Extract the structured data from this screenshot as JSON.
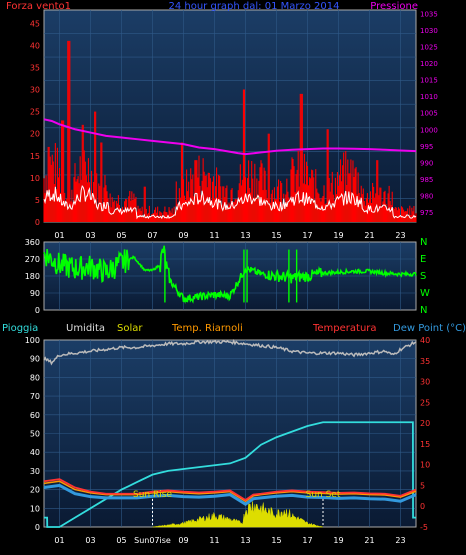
{
  "page": {
    "title": "24 hour graph dal: 01 Marzo 2014"
  },
  "colors": {
    "background": "#000000",
    "plot_top": "#1b3d66",
    "plot_bottom": "#0a1a33",
    "wind_gust": "#ff0000",
    "wind_avg": "#ffffff",
    "wind_fill": "#1d6b1d",
    "pressure": "#ee00ee",
    "direction": "#00ff00",
    "humidity": "#bbbbbb",
    "rain": "#33dddd",
    "temperature": "#ff3333",
    "temp_riarnoli": "#ff9900",
    "dew_point": "#3399dd",
    "solar": "#dddd00",
    "axis_left_red": "#ff3333",
    "axis_right_magenta": "#ee00ee",
    "axis_left_lower": "#ffffff",
    "axis_right_lower": "#ff3333"
  },
  "chart_data": [
    {
      "type": "line",
      "id": "wind-pressure",
      "title": "24 hour graph dal: 01 Marzo 2014",
      "left_label": "Forza vento1",
      "right_label": "Pressione",
      "left_ticks": [
        "0",
        "5",
        "10",
        "15",
        "20",
        "25",
        "30",
        "35",
        "40",
        "45"
      ],
      "right_ticks": [
        "975",
        "980",
        "985",
        "990",
        "995",
        "1000",
        "1005",
        "1010",
        "1015",
        "1020",
        "1025",
        "1030",
        "1035"
      ],
      "x_ticks": [
        "01",
        "03",
        "05",
        "07",
        "09",
        "11",
        "13",
        "15",
        "17",
        "19",
        "21",
        "23"
      ],
      "ylim_left": [
        0,
        48
      ],
      "ylim_right": [
        972,
        1036
      ],
      "pressure": {
        "hours": [
          0,
          0.5,
          1,
          2,
          3,
          4,
          5,
          6,
          7,
          8,
          9,
          10,
          11,
          12,
          12.5,
          13,
          14,
          15,
          16,
          17,
          18,
          19,
          20,
          21,
          22,
          23,
          24
        ],
        "values": [
          1003,
          1002.5,
          1001.5,
          1000,
          999,
          998,
          997.5,
          997,
          996.5,
          996,
          995.5,
          994.5,
          994,
          993.2,
          992.8,
          992.5,
          993,
          993.5,
          993.8,
          994,
          994.2,
          994.2,
          994.1,
          994,
          993.8,
          993.6,
          993.4
        ]
      },
      "gust_peaks": {
        "hours": [
          0.3,
          1.2,
          1.6,
          2.5,
          3.3,
          3.7,
          6.5,
          8.9,
          9.8,
          12.9,
          14.5,
          16.6,
          18.3,
          19.7,
          21.5
        ],
        "values": [
          17,
          23,
          41,
          22,
          25,
          18,
          8,
          18,
          14,
          30,
          20,
          29,
          21,
          11,
          14
        ]
      }
    },
    {
      "type": "line",
      "id": "wind-direction",
      "left_ticks": [
        "0",
        "90",
        "180",
        "270",
        "360"
      ],
      "right_ticks": [
        "N",
        "W",
        "S",
        "E",
        "N"
      ],
      "ylim": [
        0,
        360
      ],
      "direction": {
        "hours": [
          0,
          1,
          2,
          3,
          4,
          5,
          5.8,
          6.5,
          7,
          7.5,
          7.7,
          8,
          9,
          10,
          11,
          12,
          13,
          14,
          15,
          16,
          17,
          18,
          19,
          20,
          21,
          22,
          23,
          24
        ],
        "values": [
          300,
          240,
          220,
          230,
          200,
          250,
          280,
          210,
          210,
          240,
          320,
          170,
          60,
          70,
          80,
          75,
          220,
          190,
          180,
          170,
          180,
          195,
          200,
          205,
          205,
          195,
          190,
          190
        ]
      }
    },
    {
      "type": "line",
      "id": "temp-humidity",
      "header": {
        "rain": "Pioggia",
        "humidity": "Umidita",
        "solar": "Solar",
        "temp2": "Temp. Riarnoli",
        "temp": "Temperatura",
        "dew": "Dew Point (°C)"
      },
      "left_ticks": [
        "0",
        "10",
        "20",
        "30",
        "40",
        "50",
        "60",
        "70",
        "80",
        "90",
        "100"
      ],
      "right_ticks": [
        "-5",
        "0",
        "5",
        "10",
        "15",
        "20",
        "25",
        "30",
        "35",
        "40"
      ],
      "x_ticks": [
        "01",
        "03",
        "05",
        "Sun07ise",
        "09",
        "11",
        "13",
        "15",
        "17",
        "19",
        "21",
        "23"
      ],
      "ylim_left": [
        0,
        100
      ],
      "ylim_right": [
        -5,
        40
      ],
      "sun_rise_label": "Sun Rise",
      "sun_set_label": "Sun Set",
      "sun_rise_hour": 7.0,
      "sun_set_hour": 18.0,
      "humidity": {
        "hours": [
          0,
          0.5,
          1,
          2,
          3,
          4,
          5,
          6,
          7,
          8,
          9,
          10,
          11,
          12,
          13,
          14,
          15,
          16,
          17,
          18,
          19,
          20,
          21,
          22,
          22.5,
          23,
          24
        ],
        "values": [
          90,
          88,
          92,
          93,
          94,
          95,
          96,
          96,
          97,
          98,
          98,
          99,
          99,
          99,
          98,
          97,
          96,
          94,
          93,
          93,
          93,
          92,
          93,
          94,
          92,
          95,
          99
        ]
      },
      "rain": {
        "hours": [
          0,
          0.2,
          0.21,
          1,
          2,
          3,
          4,
          5,
          6,
          7,
          8,
          9,
          10,
          11,
          12,
          13,
          14,
          15,
          16,
          17,
          18,
          19,
          20,
          21,
          22,
          23,
          23.8,
          23.81,
          24
        ],
        "values": [
          5,
          5,
          0,
          0,
          5,
          10,
          15,
          20,
          24,
          28,
          30,
          31,
          32,
          33,
          34,
          37,
          44,
          48,
          51,
          54,
          56,
          56,
          56,
          56,
          56,
          56,
          56,
          5,
          5
        ]
      },
      "temperature": {
        "hours": [
          0,
          1,
          2,
          3,
          4,
          5,
          6,
          7,
          8,
          9,
          10,
          11,
          12,
          13,
          13.5,
          14,
          15,
          16,
          17,
          18,
          19,
          20,
          21,
          22,
          23,
          24
        ],
        "values": [
          6,
          6.5,
          4.5,
          3.5,
          3,
          3,
          3,
          3.5,
          3.8,
          3.5,
          3.3,
          3.5,
          3.8,
          1.5,
          2.8,
          3,
          3.5,
          3.8,
          3.5,
          3.4,
          3.2,
          3.3,
          3.1,
          3,
          2.5,
          4
        ]
      },
      "temp_riarnoli": {
        "hours": [
          0,
          1,
          2,
          3,
          4,
          5,
          6,
          7,
          8,
          9,
          10,
          11,
          12,
          13,
          13.5,
          14,
          15,
          16,
          17,
          18,
          19,
          20,
          21,
          22,
          23,
          24
        ],
        "values": [
          5.5,
          6,
          4,
          3.2,
          2.8,
          2.8,
          2.8,
          3.2,
          3.5,
          3.2,
          3,
          3.2,
          3.5,
          1.2,
          2.5,
          2.8,
          3.2,
          3.5,
          3.2,
          3.1,
          2.9,
          3,
          2.8,
          2.7,
          2.2,
          3.6
        ]
      },
      "dew_point": {
        "hours": [
          0,
          1,
          2,
          3,
          4,
          5,
          6,
          7,
          8,
          9,
          10,
          11,
          12,
          13,
          13.5,
          14,
          15,
          16,
          17,
          18,
          19,
          20,
          21,
          22,
          23,
          24
        ],
        "values": [
          4.5,
          5,
          3,
          2.3,
          2,
          2,
          2,
          2.4,
          2.6,
          2.3,
          2.2,
          2.4,
          2.8,
          0.5,
          1.8,
          2,
          2.4,
          2.6,
          2.2,
          2.1,
          1.9,
          2,
          1.8,
          1.7,
          1.2,
          2.8
        ]
      },
      "solar": {
        "hours": [
          7,
          8,
          9,
          10,
          11,
          12,
          12.8,
          13.0,
          13.5,
          14,
          14.5,
          15,
          15.5,
          16,
          17,
          18
        ],
        "values": [
          0,
          1,
          2,
          4,
          6,
          4,
          2,
          9,
          12,
          10,
          8,
          7,
          9,
          6,
          2,
          0
        ]
      }
    }
  ]
}
